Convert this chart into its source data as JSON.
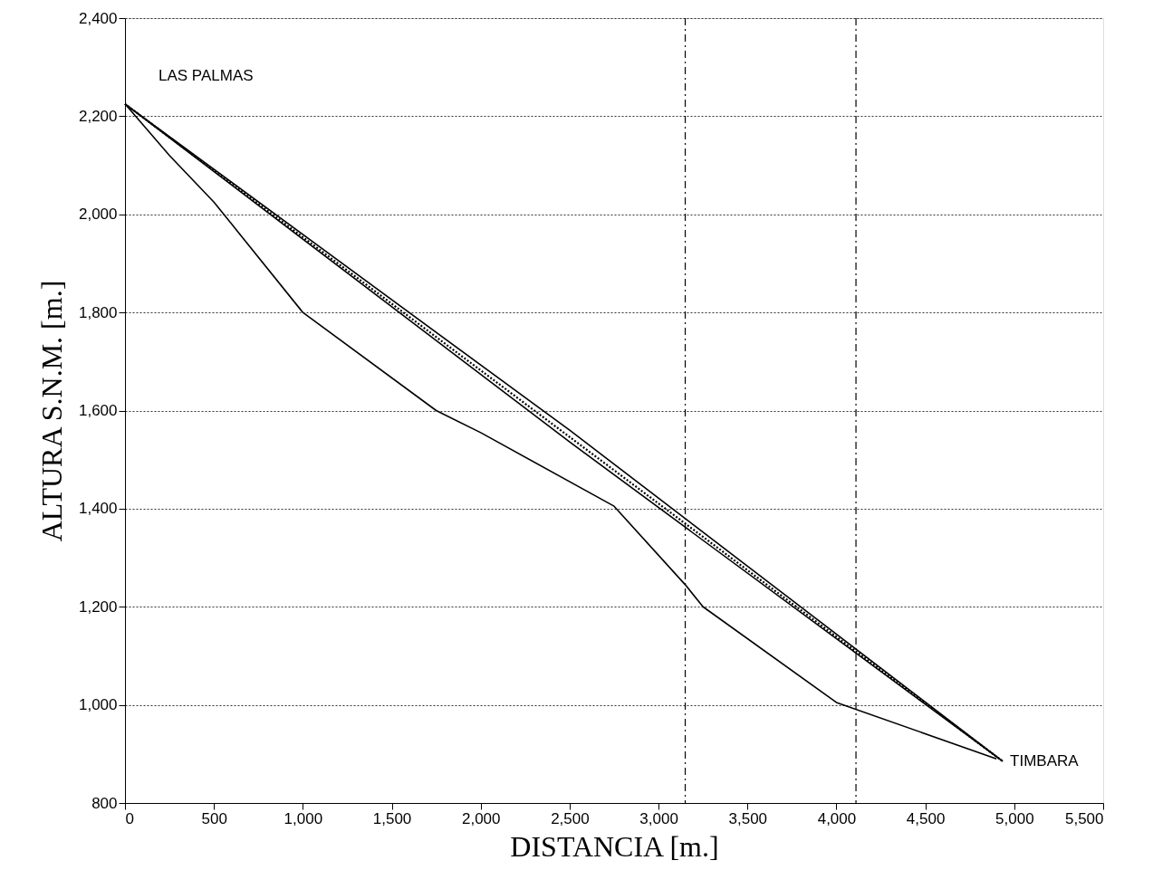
{
  "chart_data": {
    "type": "line",
    "xlabel": "DISTANCIA [m.]",
    "ylabel": "ALTURA S.N.M. [m.]",
    "xlim": [
      0,
      5500
    ],
    "xticks": [
      0,
      500,
      {
        "value": 1000,
        "label": "1,000"
      },
      {
        "value": 1500,
        "label": "1,500"
      },
      {
        "value": 2000,
        "label": "2,000"
      },
      {
        "value": 2500,
        "label": "2,500"
      },
      {
        "value": 3000,
        "label": "3,000"
      },
      {
        "value": 3500,
        "label": "3,500"
      },
      {
        "value": 4000,
        "label": "4,000"
      },
      {
        "value": 4500,
        "label": "4,500"
      },
      {
        "value": 5000,
        "label": "5,000"
      },
      {
        "value": 5500,
        "label": "5,500"
      }
    ],
    "ylim": [
      800,
      2400
    ],
    "yticks": [
      800,
      {
        "value": 1000,
        "label": "1,000"
      },
      {
        "value": 1200,
        "label": "1,200"
      },
      {
        "value": 1400,
        "label": "1,400"
      },
      {
        "value": 1600,
        "label": "1,600"
      },
      {
        "value": 1800,
        "label": "1,800"
      },
      {
        "value": 2000,
        "label": "2,000"
      },
      {
        "value": 2200,
        "label": "2,200"
      },
      {
        "value": 2400,
        "label": "2,400"
      }
    ],
    "grid": "y",
    "marker": "none",
    "series": [
      {
        "color": "#000000",
        "line_style": "solid",
        "x": [
          0,
          250,
          500,
          1000,
          1750,
          2000,
          2750,
          3150,
          3250,
          4000,
          4900
        ],
        "values": [
          2225,
          2120,
          2025,
          1800,
          1600,
          1555,
          1405,
          1245,
          1200,
          1005,
          890
        ]
      },
      {
        "color": "#000000",
        "line_style": "solid",
        "x": [
          0,
          2500,
          4935
        ],
        "values": [
          2225,
          1560,
          885
        ]
      },
      {
        "color": "#000000",
        "line_style": "dotted",
        "x": [
          0,
          4935
        ],
        "values": [
          2225,
          885
        ]
      },
      {
        "color": "#000000",
        "line_style": "solid",
        "x": [
          0,
          2500,
          4935
        ],
        "values": [
          2225,
          1536,
          885
        ]
      }
    ],
    "ref_lines": [
      {
        "axis": "x",
        "value": 3150,
        "line_style": "dashed",
        "color": "#000000"
      },
      {
        "axis": "x",
        "value": 4110,
        "line_style": "dashed",
        "color": "#000000"
      }
    ],
    "annotations": [
      {
        "text": "LAS PALMAS",
        "x": 0,
        "y": 2225
      },
      {
        "text": "TIMBARA",
        "x": 4935,
        "y": 885
      }
    ]
  }
}
